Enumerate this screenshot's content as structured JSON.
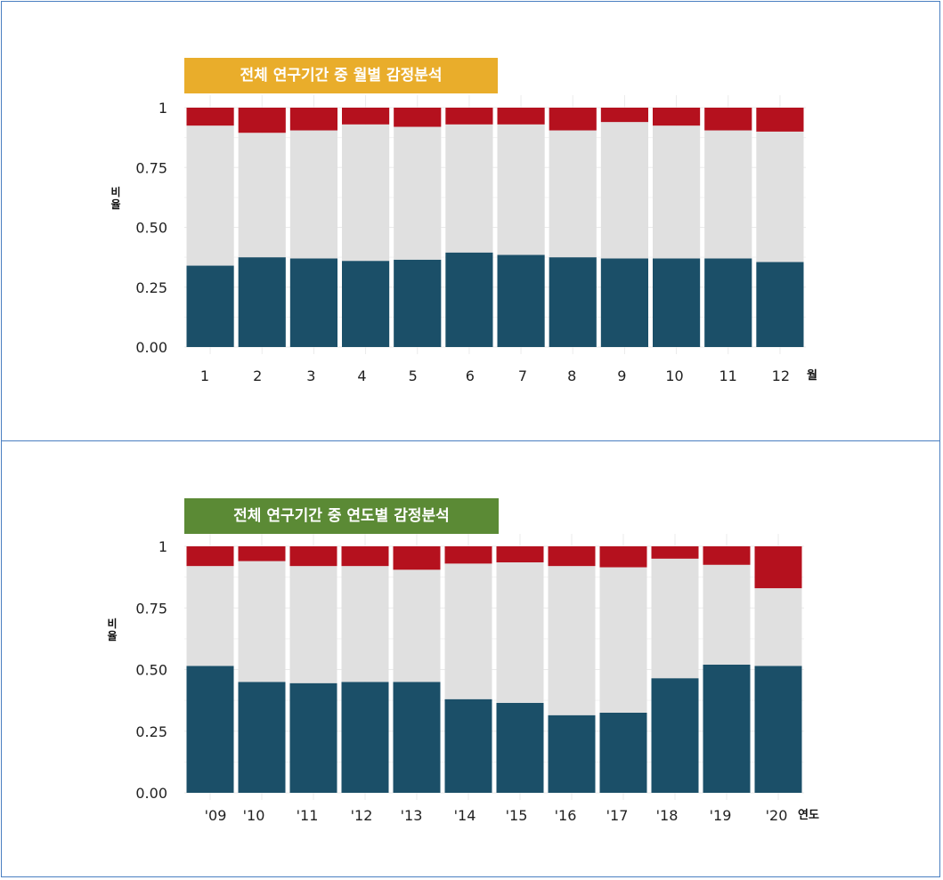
{
  "colors": {
    "negative": "#b5111e",
    "neutral": "#e0e0e0",
    "positive": "#1b4f68",
    "grid": "#ebebeb"
  },
  "chart_data": [
    {
      "type": "bar",
      "stacked": true,
      "title": "전체 연구기간 중 월별 감정분석",
      "xlabel": "월",
      "ylabel": "비율",
      "categories": [
        "1",
        "2",
        "3",
        "4",
        "5",
        "6",
        "7",
        "8",
        "9",
        "10",
        "11",
        "12"
      ],
      "ylim": [
        0,
        1
      ],
      "yticks": [
        "0.00",
        "0.25",
        "0.50",
        "0.75",
        "1"
      ],
      "series": [
        {
          "values": [
            0.34,
            0.375,
            0.37,
            0.36,
            0.365,
            0.395,
            0.385,
            0.375,
            0.37,
            0.37,
            0.37,
            0.355
          ]
        },
        {
          "values": [
            0.585,
            0.52,
            0.535,
            0.57,
            0.555,
            0.535,
            0.545,
            0.53,
            0.57,
            0.555,
            0.535,
            0.545
          ]
        },
        {
          "values": [
            0.075,
            0.105,
            0.095,
            0.07,
            0.08,
            0.07,
            0.07,
            0.095,
            0.06,
            0.075,
            0.095,
            0.1
          ]
        }
      ]
    },
    {
      "type": "bar",
      "stacked": true,
      "title": "전체 연구기간 중 연도별 감정분석",
      "xlabel": "연도",
      "ylabel": "비율",
      "categories": [
        "'09",
        "'10",
        "'11",
        "'12",
        "'13",
        "'14",
        "'15",
        "'16",
        "'17",
        "'18",
        "'19",
        "'20"
      ],
      "ylim": [
        0,
        1
      ],
      "yticks": [
        "0.00",
        "0.25",
        "0.50",
        "0.75",
        "1"
      ],
      "series": [
        {
          "values": [
            0.515,
            0.45,
            0.445,
            0.45,
            0.45,
            0.38,
            0.365,
            0.315,
            0.325,
            0.465,
            0.52,
            0.515
          ]
        },
        {
          "values": [
            0.405,
            0.49,
            0.475,
            0.47,
            0.455,
            0.55,
            0.57,
            0.605,
            0.59,
            0.485,
            0.405,
            0.315
          ]
        },
        {
          "values": [
            0.08,
            0.06,
            0.08,
            0.08,
            0.095,
            0.07,
            0.065,
            0.08,
            0.085,
            0.1,
            0.125,
            0.17
          ]
        }
      ]
    }
  ]
}
